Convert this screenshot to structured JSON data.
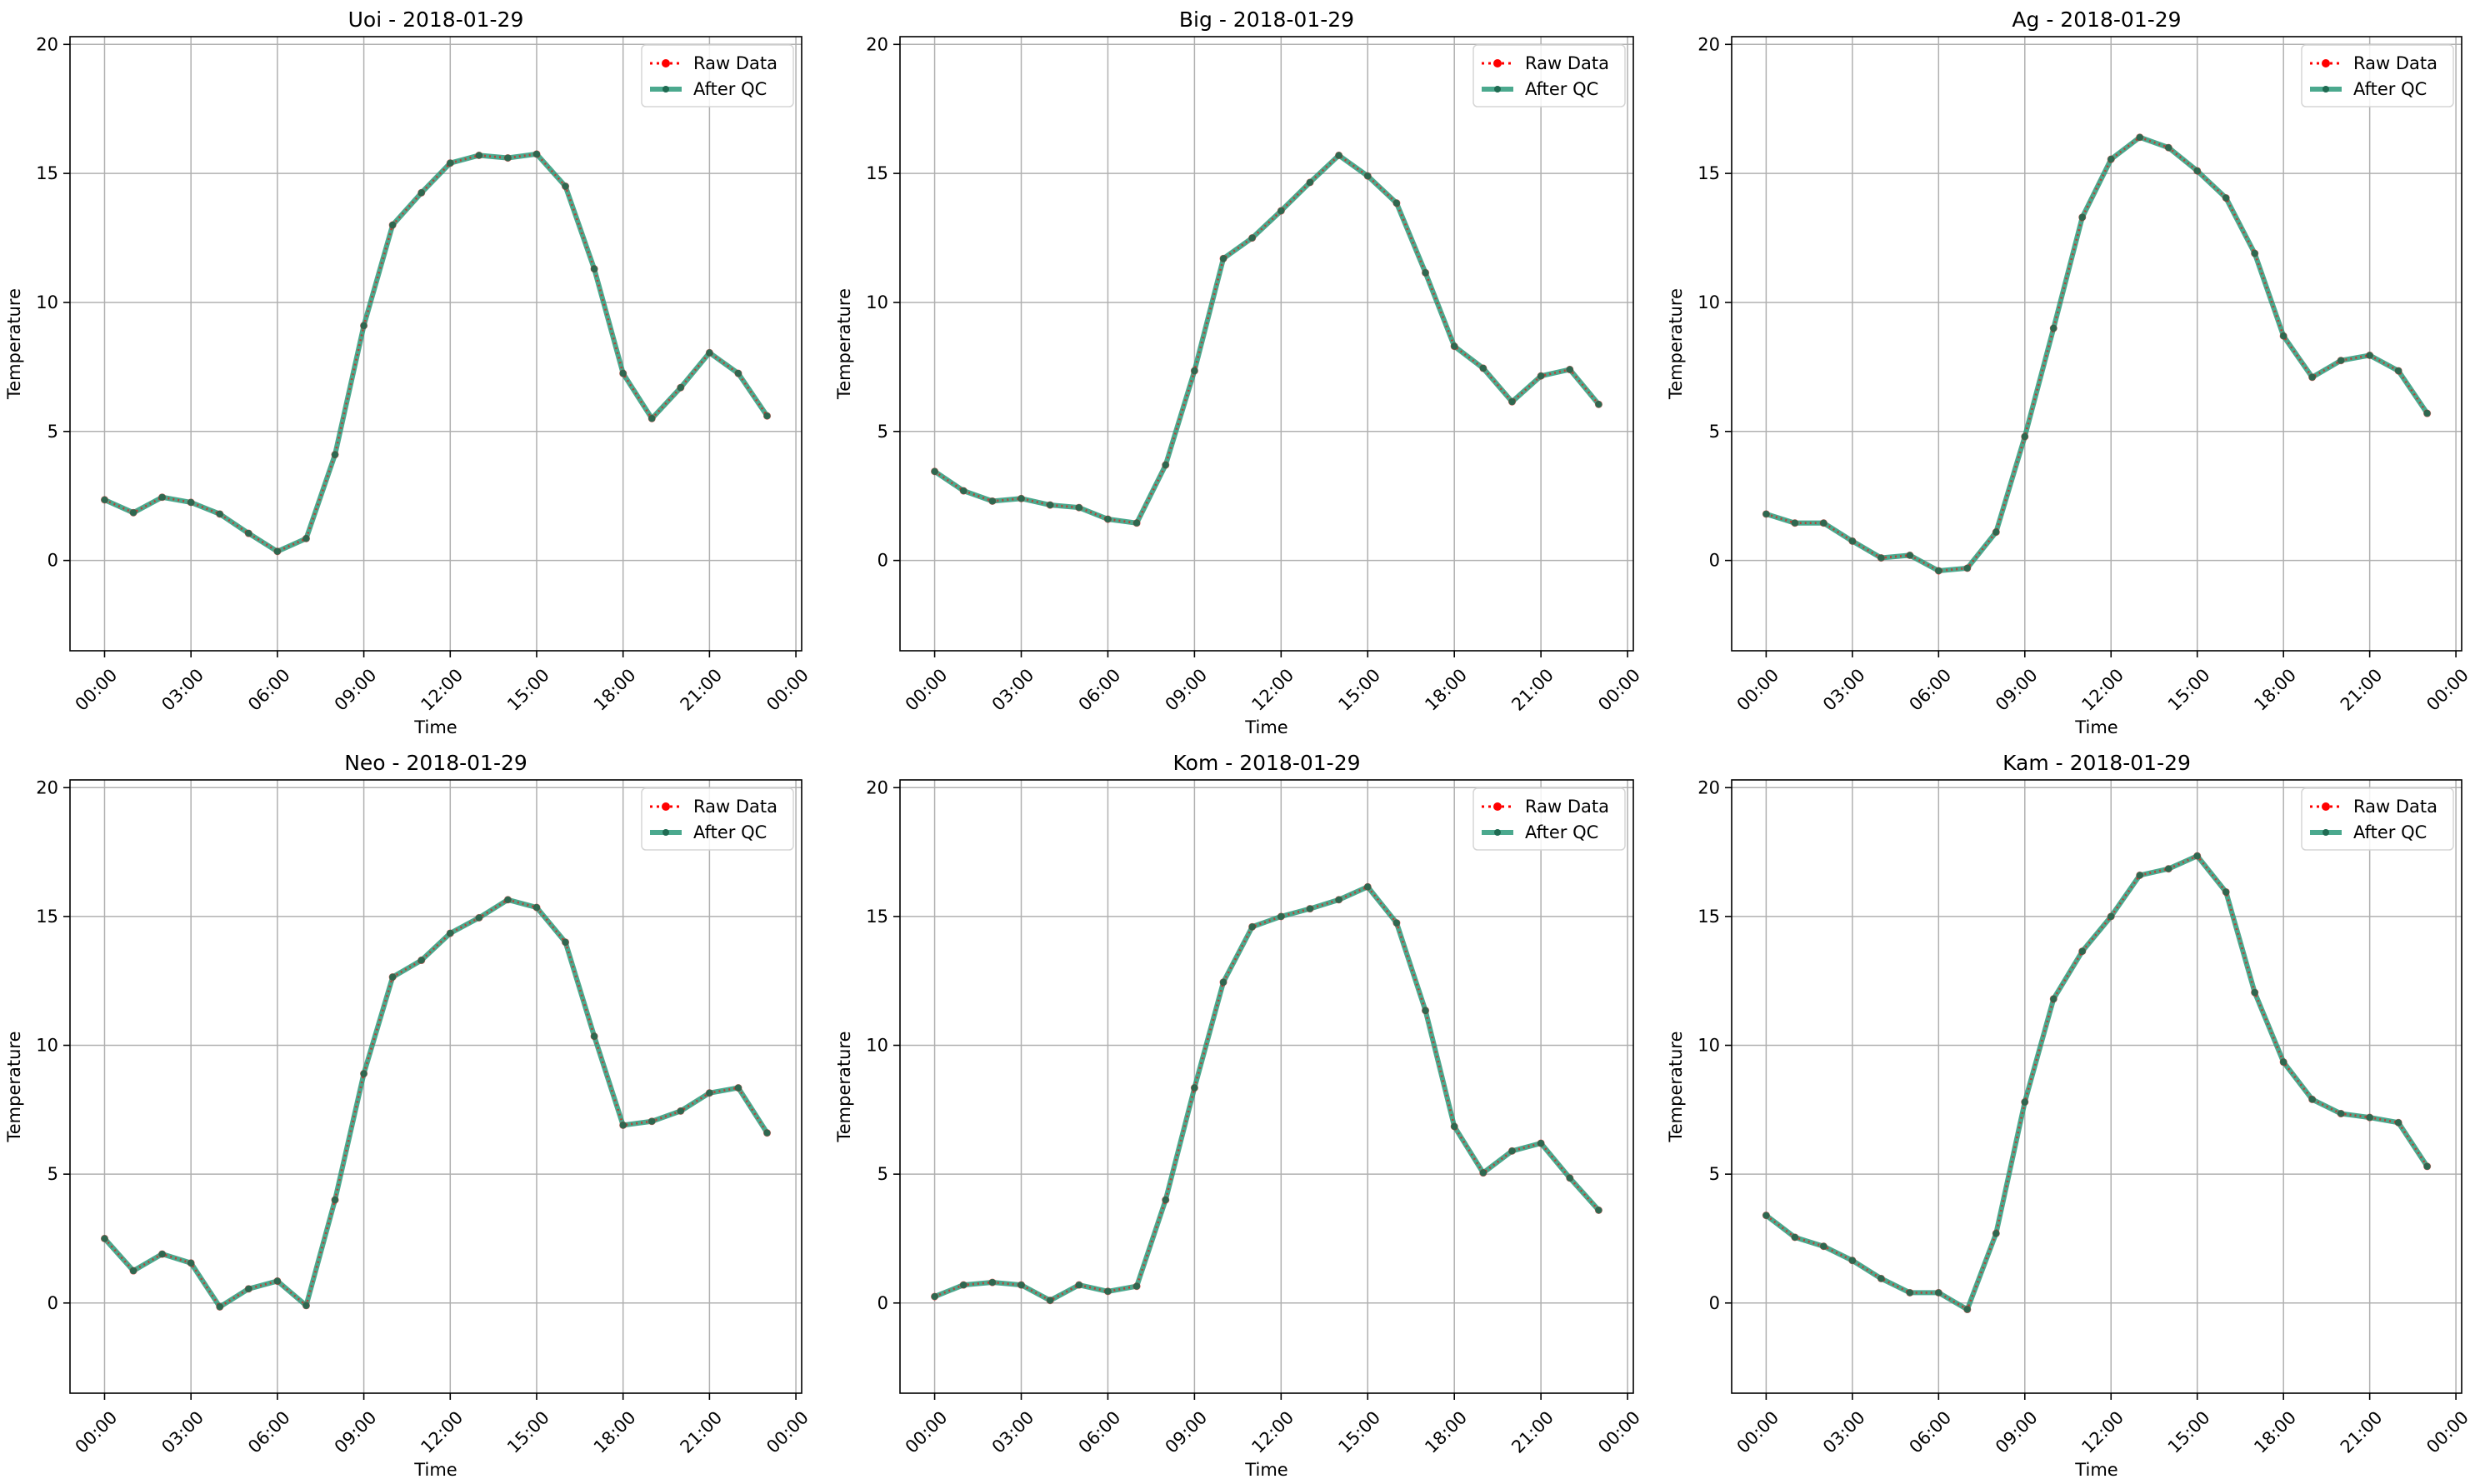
{
  "legend_labels": {
    "raw": "Raw Data",
    "qc": "After QC"
  },
  "colors": {
    "raw": "#ff0000",
    "qc": "#2b9a7a",
    "grid": "#b0b0b0",
    "axis": "#000000",
    "marker": "#1f6b52"
  },
  "chart_data": [
    {
      "type": "line",
      "title": "Uoi - 2018-01-29",
      "xlabel": "Time",
      "ylabel": "Temperature",
      "xticks": [
        "00:00",
        "03:00",
        "06:00",
        "09:00",
        "12:00",
        "15:00",
        "18:00",
        "21:00",
        "00:00"
      ],
      "yticks": [
        0,
        5,
        10,
        15,
        20
      ],
      "xlim": [
        -1.2,
        24.2
      ],
      "ylim": [
        -3.5,
        20.3
      ],
      "grid": true,
      "legend": "upper-right",
      "x": [
        0,
        1,
        2,
        3,
        4,
        5,
        6,
        7,
        8,
        9,
        10,
        11,
        12,
        13,
        14,
        15,
        16,
        17,
        18,
        19,
        20,
        21,
        22,
        23
      ],
      "series": [
        {
          "name": "Raw Data",
          "values": [
            2.35,
            1.85,
            2.45,
            2.25,
            1.8,
            1.05,
            0.35,
            0.85,
            4.1,
            9.1,
            13.0,
            14.25,
            15.4,
            15.7,
            15.6,
            15.75,
            14.5,
            11.3,
            7.25,
            5.5,
            6.7,
            8.05,
            7.25,
            5.6
          ]
        },
        {
          "name": "After QC",
          "values": [
            2.35,
            1.85,
            2.45,
            2.25,
            1.8,
            1.05,
            0.35,
            0.85,
            4.1,
            9.1,
            13.0,
            14.25,
            15.4,
            15.7,
            15.6,
            15.75,
            14.5,
            11.3,
            7.25,
            5.5,
            6.7,
            8.05,
            7.25,
            5.6
          ]
        }
      ]
    },
    {
      "type": "line",
      "title": "Big - 2018-01-29",
      "xlabel": "Time",
      "ylabel": "Temperature",
      "xticks": [
        "00:00",
        "03:00",
        "06:00",
        "09:00",
        "12:00",
        "15:00",
        "18:00",
        "21:00",
        "00:00"
      ],
      "yticks": [
        0,
        5,
        10,
        15,
        20
      ],
      "xlim": [
        -1.2,
        24.2
      ],
      "ylim": [
        -3.5,
        20.3
      ],
      "grid": true,
      "legend": "upper-right",
      "x": [
        0,
        1,
        2,
        3,
        4,
        5,
        6,
        7,
        8,
        9,
        10,
        11,
        12,
        13,
        14,
        15,
        16,
        17,
        18,
        19,
        20,
        21,
        22,
        23
      ],
      "series": [
        {
          "name": "Raw Data",
          "values": [
            3.45,
            2.7,
            2.3,
            2.4,
            2.15,
            2.05,
            1.6,
            1.45,
            3.7,
            7.35,
            11.7,
            12.5,
            13.55,
            14.65,
            15.7,
            14.9,
            13.85,
            11.15,
            8.3,
            7.45,
            6.15,
            7.15,
            7.4,
            6.05
          ]
        },
        {
          "name": "After QC",
          "values": [
            3.45,
            2.7,
            2.3,
            2.4,
            2.15,
            2.05,
            1.6,
            1.45,
            3.7,
            7.35,
            11.7,
            12.5,
            13.55,
            14.65,
            15.7,
            14.9,
            13.85,
            11.15,
            8.3,
            7.45,
            6.15,
            7.15,
            7.4,
            6.05
          ]
        }
      ]
    },
    {
      "type": "line",
      "title": "Ag - 2018-01-29",
      "xlabel": "Time",
      "ylabel": "Temperature",
      "xticks": [
        "00:00",
        "03:00",
        "06:00",
        "09:00",
        "12:00",
        "15:00",
        "18:00",
        "21:00",
        "00:00"
      ],
      "yticks": [
        0,
        5,
        10,
        15,
        20
      ],
      "xlim": [
        -1.2,
        24.2
      ],
      "ylim": [
        -3.5,
        20.3
      ],
      "grid": true,
      "legend": "upper-right",
      "x": [
        0,
        1,
        2,
        3,
        4,
        5,
        6,
        7,
        8,
        9,
        10,
        11,
        12,
        13,
        14,
        15,
        16,
        17,
        18,
        19,
        20,
        21,
        22,
        23
      ],
      "series": [
        {
          "name": "Raw Data",
          "values": [
            1.8,
            1.45,
            1.45,
            0.75,
            0.1,
            0.2,
            -0.4,
            -0.3,
            1.1,
            4.8,
            9.0,
            13.3,
            15.55,
            16.4,
            16.0,
            15.1,
            14.05,
            11.9,
            8.7,
            7.1,
            7.75,
            7.95,
            7.35,
            5.7
          ]
        },
        {
          "name": "After QC",
          "values": [
            1.8,
            1.45,
            1.45,
            0.75,
            0.1,
            0.2,
            -0.4,
            -0.3,
            1.1,
            4.8,
            9.0,
            13.3,
            15.55,
            16.4,
            16.0,
            15.1,
            14.05,
            11.9,
            8.7,
            7.1,
            7.75,
            7.95,
            7.35,
            5.7
          ]
        }
      ]
    },
    {
      "type": "line",
      "title": "Neo - 2018-01-29",
      "xlabel": "Time",
      "ylabel": "Temperature",
      "xticks": [
        "00:00",
        "03:00",
        "06:00",
        "09:00",
        "12:00",
        "15:00",
        "18:00",
        "21:00",
        "00:00"
      ],
      "yticks": [
        0,
        5,
        10,
        15,
        20
      ],
      "xlim": [
        -1.2,
        24.2
      ],
      "ylim": [
        -3.5,
        20.3
      ],
      "grid": true,
      "legend": "upper-right",
      "x": [
        0,
        1,
        2,
        3,
        4,
        5,
        6,
        7,
        8,
        9,
        10,
        11,
        12,
        13,
        14,
        15,
        16,
        17,
        18,
        19,
        20,
        21,
        22,
        23
      ],
      "series": [
        {
          "name": "Raw Data",
          "values": [
            2.5,
            1.25,
            1.9,
            1.55,
            -0.15,
            0.55,
            0.85,
            -0.1,
            4.0,
            8.9,
            12.65,
            13.3,
            14.35,
            14.95,
            15.65,
            15.35,
            14.0,
            10.35,
            6.9,
            7.05,
            7.45,
            8.15,
            8.35,
            6.6
          ]
        },
        {
          "name": "After QC",
          "values": [
            2.5,
            1.25,
            1.9,
            1.55,
            -0.15,
            0.55,
            0.85,
            -0.1,
            4.0,
            8.9,
            12.65,
            13.3,
            14.35,
            14.95,
            15.65,
            15.35,
            14.0,
            10.35,
            6.9,
            7.05,
            7.45,
            8.15,
            8.35,
            6.6
          ]
        }
      ]
    },
    {
      "type": "line",
      "title": "Kom - 2018-01-29",
      "xlabel": "Time",
      "ylabel": "Temperature",
      "xticks": [
        "00:00",
        "03:00",
        "06:00",
        "09:00",
        "12:00",
        "15:00",
        "18:00",
        "21:00",
        "00:00"
      ],
      "yticks": [
        0,
        5,
        10,
        15,
        20
      ],
      "xlim": [
        -1.2,
        24.2
      ],
      "ylim": [
        -3.5,
        20.3
      ],
      "grid": true,
      "legend": "upper-right",
      "x": [
        0,
        1,
        2,
        3,
        4,
        5,
        6,
        7,
        8,
        9,
        10,
        11,
        12,
        13,
        14,
        15,
        16,
        17,
        18,
        19,
        20,
        21,
        22,
        23
      ],
      "series": [
        {
          "name": "Raw Data",
          "values": [
            0.25,
            0.7,
            0.8,
            0.7,
            0.1,
            0.7,
            0.45,
            0.65,
            4.0,
            8.35,
            12.45,
            14.6,
            15.0,
            15.3,
            15.65,
            16.15,
            14.75,
            11.35,
            6.85,
            5.05,
            5.9,
            6.2,
            4.85,
            3.6
          ]
        },
        {
          "name": "After QC",
          "values": [
            0.25,
            0.7,
            0.8,
            0.7,
            0.1,
            0.7,
            0.45,
            0.65,
            4.0,
            8.35,
            12.45,
            14.6,
            15.0,
            15.3,
            15.65,
            16.15,
            14.75,
            11.35,
            6.85,
            5.05,
            5.9,
            6.2,
            4.85,
            3.6
          ]
        }
      ]
    },
    {
      "type": "line",
      "title": "Kam - 2018-01-29",
      "xlabel": "Time",
      "ylabel": "Temperature",
      "xticks": [
        "00:00",
        "03:00",
        "06:00",
        "09:00",
        "12:00",
        "15:00",
        "18:00",
        "21:00",
        "00:00"
      ],
      "yticks": [
        0,
        5,
        10,
        15,
        20
      ],
      "xlim": [
        -1.2,
        24.2
      ],
      "ylim": [
        -3.5,
        20.3
      ],
      "grid": true,
      "legend": "upper-right",
      "x": [
        0,
        1,
        2,
        3,
        4,
        5,
        6,
        7,
        8,
        9,
        10,
        11,
        12,
        13,
        14,
        15,
        16,
        17,
        18,
        19,
        20,
        21,
        22,
        23
      ],
      "series": [
        {
          "name": "Raw Data",
          "values": [
            3.4,
            2.55,
            2.2,
            1.65,
            0.95,
            0.4,
            0.4,
            -0.25,
            2.7,
            7.8,
            11.8,
            13.65,
            15.0,
            16.6,
            16.85,
            17.35,
            15.95,
            12.05,
            9.35,
            7.9,
            7.35,
            7.2,
            7.0,
            5.3
          ]
        },
        {
          "name": "After QC",
          "values": [
            3.4,
            2.55,
            2.2,
            1.65,
            0.95,
            0.4,
            0.4,
            -0.25,
            2.7,
            7.8,
            11.8,
            13.65,
            15.0,
            16.6,
            16.85,
            17.35,
            15.95,
            12.05,
            9.35,
            7.9,
            7.35,
            7.2,
            7.0,
            5.3
          ]
        }
      ]
    }
  ]
}
